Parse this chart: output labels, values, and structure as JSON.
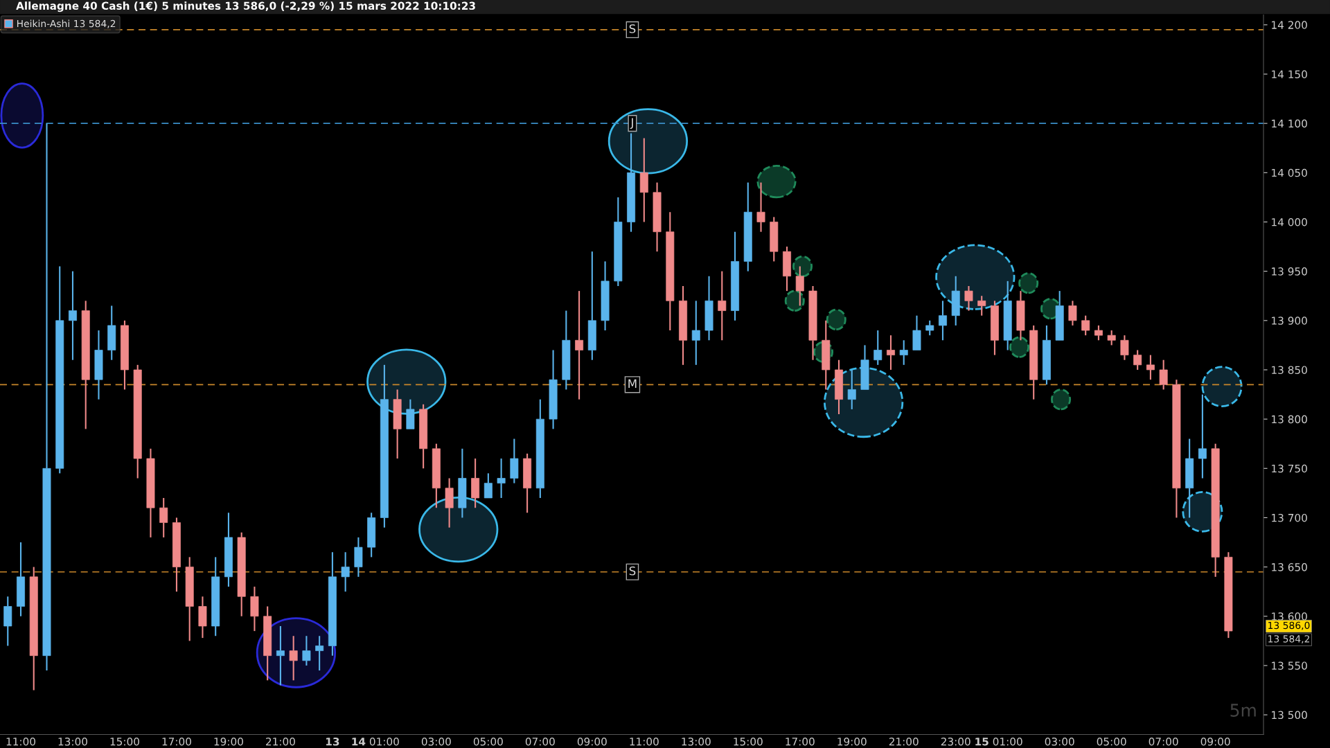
{
  "chart_data": {
    "type": "candlestick",
    "title": "Allemagne 40 Cash (1€) 5 minutes 13 586,0 (-2,29 %) 15 mars 2022 10:10:23",
    "legend_title": "Heikin-Ashi 13 584,2",
    "legend": "top left",
    "categories": [
      null,
      "11:00",
      null,
      null,
      null,
      "13:00",
      null,
      null,
      null,
      "15:00",
      null,
      null,
      null,
      "17:00",
      null,
      null,
      null,
      "19:00",
      null,
      null,
      null,
      "21:00",
      null,
      null,
      null,
      "13",
      null,
      "14",
      null,
      "01:00",
      null,
      null,
      null,
      "03:00",
      null,
      null,
      null,
      "05:00",
      null,
      null,
      null,
      "07:00",
      null,
      null,
      null,
      "09:00",
      null,
      null,
      null,
      "11:00",
      null,
      null,
      null,
      "13:00",
      null,
      null,
      null,
      "15:00",
      null,
      null,
      null,
      "17:00",
      null,
      null,
      null,
      "19:00",
      null,
      null,
      null,
      "21:00",
      null,
      null,
      null,
      "23:00",
      null,
      "15",
      null,
      "01:00",
      null,
      null,
      null,
      "03:00",
      null,
      null,
      null,
      "05:00",
      null,
      null,
      null,
      "07:00",
      null,
      null,
      null,
      "09:00",
      null
    ],
    "ohlc": [
      [
        13590,
        13620,
        13570,
        13610
      ],
      [
        13610,
        13675,
        13600,
        13640
      ],
      [
        13640,
        13650,
        13525,
        13560
      ],
      [
        13560,
        14100,
        13545,
        13750
      ],
      [
        13750,
        13955,
        13745,
        13900
      ],
      [
        13900,
        13950,
        13860,
        13910
      ],
      [
        13910,
        13920,
        13790,
        13840
      ],
      [
        13840,
        13890,
        13820,
        13870
      ],
      [
        13870,
        13915,
        13860,
        13895
      ],
      [
        13895,
        13900,
        13830,
        13850
      ],
      [
        13850,
        13855,
        13740,
        13760
      ],
      [
        13760,
        13770,
        13680,
        13710
      ],
      [
        13710,
        13720,
        13680,
        13695
      ],
      [
        13695,
        13700,
        13625,
        13650
      ],
      [
        13650,
        13660,
        13575,
        13610
      ],
      [
        13610,
        13620,
        13578,
        13590
      ],
      [
        13590,
        13660,
        13580,
        13640
      ],
      [
        13640,
        13705,
        13630,
        13680
      ],
      [
        13680,
        13685,
        13600,
        13620
      ],
      [
        13620,
        13630,
        13585,
        13600
      ],
      [
        13600,
        13610,
        13535,
        13560
      ],
      [
        13560,
        13590,
        13530,
        13565
      ],
      [
        13565,
        13580,
        13535,
        13555
      ],
      [
        13555,
        13580,
        13550,
        13565
      ],
      [
        13565,
        13580,
        13545,
        13570
      ],
      [
        13570,
        13665,
        13560,
        13640
      ],
      [
        13640,
        13665,
        13625,
        13650
      ],
      [
        13650,
        13680,
        13640,
        13670
      ],
      [
        13670,
        13705,
        13660,
        13700
      ],
      [
        13700,
        13855,
        13690,
        13820
      ],
      [
        13820,
        13830,
        13760,
        13790
      ],
      [
        13790,
        13820,
        13790,
        13810
      ],
      [
        13810,
        13815,
        13750,
        13770
      ],
      [
        13770,
        13775,
        13710,
        13730
      ],
      [
        13730,
        13740,
        13690,
        13710
      ],
      [
        13710,
        13770,
        13700,
        13740
      ],
      [
        13740,
        13760,
        13710,
        13720
      ],
      [
        13720,
        13745,
        13720,
        13735
      ],
      [
        13735,
        13760,
        13720,
        13740
      ],
      [
        13740,
        13780,
        13735,
        13760
      ],
      [
        13760,
        13765,
        13705,
        13730
      ],
      [
        13730,
        13820,
        13720,
        13800
      ],
      [
        13800,
        13870,
        13790,
        13840
      ],
      [
        13840,
        13910,
        13830,
        13880
      ],
      [
        13880,
        13930,
        13820,
        13870
      ],
      [
        13870,
        13970,
        13860,
        13900
      ],
      [
        13900,
        13960,
        13890,
        13940
      ],
      [
        13940,
        14025,
        13935,
        14000
      ],
      [
        14000,
        14090,
        13990,
        14050
      ],
      [
        14050,
        14085,
        14000,
        14030
      ],
      [
        14030,
        14040,
        13970,
        13990
      ],
      [
        13990,
        14010,
        13890,
        13920
      ],
      [
        13920,
        13935,
        13855,
        13880
      ],
      [
        13880,
        13920,
        13855,
        13890
      ],
      [
        13890,
        13945,
        13880,
        13920
      ],
      [
        13920,
        13950,
        13880,
        13910
      ],
      [
        13910,
        13990,
        13900,
        13960
      ],
      [
        13960,
        14040,
        13950,
        14010
      ],
      [
        14010,
        14040,
        13990,
        14000
      ],
      [
        14000,
        14005,
        13960,
        13970
      ],
      [
        13970,
        13975,
        13930,
        13945
      ],
      [
        13945,
        13955,
        13915,
        13930
      ],
      [
        13930,
        13935,
        13860,
        13880
      ],
      [
        13880,
        13900,
        13830,
        13850
      ],
      [
        13850,
        13860,
        13805,
        13820
      ],
      [
        13820,
        13850,
        13810,
        13830
      ],
      [
        13830,
        13875,
        13830,
        13860
      ],
      [
        13860,
        13890,
        13855,
        13870
      ],
      [
        13870,
        13885,
        13850,
        13865
      ],
      [
        13865,
        13880,
        13855,
        13870
      ],
      [
        13870,
        13905,
        13870,
        13890
      ],
      [
        13890,
        13900,
        13885,
        13895
      ],
      [
        13895,
        13920,
        13880,
        13905
      ],
      [
        13905,
        13945,
        13895,
        13930
      ],
      [
        13930,
        13935,
        13910,
        13920
      ],
      [
        13920,
        13925,
        13905,
        13915
      ],
      [
        13915,
        13920,
        13865,
        13880
      ],
      [
        13880,
        13940,
        13870,
        13920
      ],
      [
        13920,
        13930,
        13880,
        13890
      ],
      [
        13890,
        13895,
        13820,
        13840
      ],
      [
        13840,
        13895,
        13835,
        13880
      ],
      [
        13880,
        13930,
        13880,
        13915
      ],
      [
        13915,
        13920,
        13895,
        13900
      ],
      [
        13900,
        13905,
        13885,
        13890
      ],
      [
        13890,
        13895,
        13880,
        13885
      ],
      [
        13885,
        13890,
        13875,
        13880
      ],
      [
        13880,
        13885,
        13860,
        13865
      ],
      [
        13865,
        13870,
        13850,
        13855
      ],
      [
        13855,
        13865,
        13840,
        13850
      ],
      [
        13850,
        13860,
        13830,
        13835
      ],
      [
        13835,
        13840,
        13700,
        13730
      ],
      [
        13730,
        13780,
        13700,
        13760
      ],
      [
        13760,
        13825,
        13740,
        13770
      ],
      [
        13770,
        13775,
        13640,
        13660
      ],
      [
        13660,
        13665,
        13578,
        13585
      ]
    ],
    "colors": [
      "#5ab4ec",
      "#5ab4ec",
      "#f08a8a",
      "#5ab4ec",
      "#5ab4ec",
      "#5ab4ec",
      "#f08a8a",
      "#5ab4ec",
      "#5ab4ec",
      "#f08a8a",
      "#f08a8a",
      "#f08a8a",
      "#f08a8a",
      "#f08a8a",
      "#f08a8a",
      "#f08a8a",
      "#5ab4ec",
      "#5ab4ec",
      "#f08a8a",
      "#f08a8a",
      "#f08a8a",
      "#5ab4ec",
      "#f08a8a",
      "#5ab4ec",
      "#5ab4ec",
      "#5ab4ec",
      "#5ab4ec",
      "#5ab4ec",
      "#5ab4ec",
      "#5ab4ec",
      "#f08a8a",
      "#5ab4ec",
      "#f08a8a",
      "#f08a8a",
      "#f08a8a",
      "#5ab4ec",
      "#f08a8a",
      "#5ab4ec",
      "#5ab4ec",
      "#5ab4ec",
      "#f08a8a",
      "#5ab4ec",
      "#5ab4ec",
      "#5ab4ec",
      "#f08a8a",
      "#5ab4ec",
      "#5ab4ec",
      "#5ab4ec",
      "#5ab4ec",
      "#f08a8a",
      "#f08a8a",
      "#f08a8a",
      "#f08a8a",
      "#5ab4ec",
      "#5ab4ec",
      "#f08a8a",
      "#5ab4ec",
      "#5ab4ec",
      "#f08a8a",
      "#f08a8a",
      "#f08a8a",
      "#f08a8a",
      "#f08a8a",
      "#f08a8a",
      "#f08a8a",
      "#5ab4ec",
      "#5ab4ec",
      "#5ab4ec",
      "#f08a8a",
      "#5ab4ec",
      "#5ab4ec",
      "#5ab4ec",
      "#5ab4ec",
      "#5ab4ec",
      "#f08a8a",
      "#f08a8a",
      "#f08a8a",
      "#5ab4ec",
      "#f08a8a",
      "#f08a8a",
      "#5ab4ec",
      "#5ab4ec",
      "#f08a8a",
      "#f08a8a",
      "#f08a8a",
      "#f08a8a",
      "#f08a8a",
      "#f08a8a",
      "#f08a8a",
      "#f08a8a",
      "#f08a8a",
      "#5ab4ec",
      "#5ab4ec",
      "#f08a8a",
      "#f08a8a"
    ],
    "ylim": [
      13480,
      14210
    ],
    "yticks": [
      {
        "value": 13500,
        "label": "13 500"
      },
      {
        "value": 13550,
        "label": "13 550"
      },
      {
        "value": 13600,
        "label": "13 600"
      },
      {
        "value": 13650,
        "label": "13 650"
      },
      {
        "value": 13700,
        "label": "13 700"
      },
      {
        "value": 13750,
        "label": "13 750"
      },
      {
        "value": 13800,
        "label": "13 800"
      },
      {
        "value": 13850,
        "label": "13 850"
      },
      {
        "value": 13900,
        "label": "13 900"
      },
      {
        "value": 13950,
        "label": "13 950"
      },
      {
        "value": 14000,
        "label": "14 000"
      },
      {
        "value": 14050,
        "label": "14 050"
      },
      {
        "value": 14100,
        "label": "14 100"
      },
      {
        "value": 14150,
        "label": "14 150"
      },
      {
        "value": 14200,
        "label": "14 200"
      }
    ],
    "ref_lines": [
      {
        "axis": "y",
        "value": 14195,
        "label": "S",
        "color": "#c8862a",
        "line_style": "dashed"
      },
      {
        "axis": "y",
        "value": 14100,
        "label": "J",
        "color": "#3a8ec8",
        "line_style": "dashed"
      },
      {
        "axis": "y",
        "value": 13835,
        "label": "M",
        "color": "#c8862a",
        "line_style": "dashed"
      },
      {
        "axis": "y",
        "value": 13645,
        "label": "S",
        "color": "#c8862a",
        "line_style": "dashed"
      }
    ],
    "annotations": [
      "13 586,0",
      "13 584,2",
      "5m"
    ],
    "grid": false
  }
}
